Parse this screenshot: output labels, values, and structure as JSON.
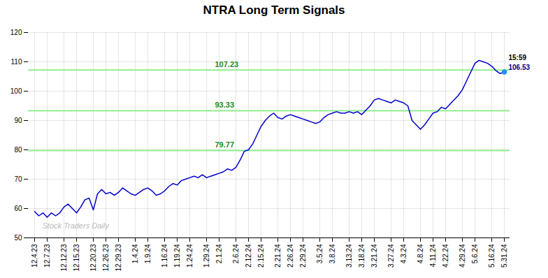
{
  "chart_data": {
    "type": "line",
    "title": "NTRA Long Term Signals",
    "categories": [
      "12.4.23",
      null,
      null,
      "12.7.23",
      null,
      null,
      null,
      "12.12.23",
      null,
      null,
      "12.15.23",
      null,
      null,
      null,
      "12.20.23",
      null,
      null,
      "12.26.23",
      null,
      null,
      "12.29.23",
      null,
      null,
      null,
      "1.4.24",
      null,
      null,
      "1.9.24",
      null,
      null,
      null,
      "1.16.24",
      null,
      null,
      "1.19.24",
      null,
      null,
      "1.24.24",
      null,
      null,
      null,
      "1.29.24",
      null,
      null,
      "2.1.24",
      null,
      null,
      null,
      "2.6.24",
      null,
      null,
      "2.12.24",
      null,
      null,
      "2.15.24",
      null,
      null,
      null,
      "2.21.24",
      null,
      null,
      "2.26.24",
      null,
      null,
      "2.29.24",
      null,
      null,
      null,
      "3.5.24",
      null,
      null,
      "3.8.24",
      null,
      null,
      null,
      "3.13.24",
      null,
      null,
      "3.18.24",
      null,
      null,
      "3.21.24",
      null,
      null,
      null,
      "3.27.24",
      null,
      null,
      "4.3.24",
      null,
      null,
      null,
      "4.8.24",
      null,
      null,
      "4.11.24",
      null,
      null,
      "4.22.24",
      null,
      null,
      null,
      "4.29.24",
      null,
      null,
      "5.6.24",
      null,
      null,
      null,
      "5.16.24",
      null,
      null,
      "5.31.24"
    ],
    "values": [
      59.0,
      57.5,
      58.5,
      57.0,
      58.5,
      57.5,
      58.5,
      60.5,
      61.5,
      60.0,
      58.5,
      60.5,
      63.0,
      63.5,
      59.5,
      65.0,
      66.5,
      65.0,
      65.5,
      64.5,
      65.5,
      67.0,
      66.0,
      65.0,
      64.5,
      65.5,
      66.5,
      67.0,
      66.0,
      64.5,
      65.0,
      66.0,
      67.5,
      68.5,
      68.0,
      69.5,
      70.0,
      70.5,
      71.0,
      70.5,
      71.5,
      70.5,
      71.0,
      71.5,
      72.0,
      72.5,
      73.5,
      73.0,
      74.0,
      76.5,
      79.5,
      80.0,
      82.0,
      85.0,
      88.0,
      90.0,
      91.5,
      92.5,
      91.0,
      90.5,
      91.5,
      92.0,
      91.5,
      91.0,
      90.5,
      90.0,
      89.5,
      89.0,
      89.5,
      91.0,
      92.0,
      92.5,
      93.0,
      92.5,
      92.5,
      93.0,
      92.5,
      93.0,
      92.0,
      93.5,
      95.0,
      97.0,
      97.5,
      97.0,
      96.5,
      96.0,
      97.0,
      96.5,
      96.0,
      95.0,
      90.0,
      88.5,
      87.0,
      88.5,
      90.5,
      92.5,
      93.0,
      94.5,
      94.0,
      95.5,
      97.0,
      98.5,
      100.5,
      103.5,
      106.5,
      109.5,
      110.5,
      110.0,
      109.5,
      108.5,
      107.0,
      106.0,
      106.53
    ],
    "color": "#0000CD",
    "ylim": [
      50,
      120
    ],
    "yticks": [
      50,
      60,
      70,
      80,
      90,
      100,
      110,
      120
    ],
    "grid": true,
    "hlines": {
      "values": [
        79.77,
        93.33,
        107.23
      ],
      "labels": [
        "79.77",
        "93.33",
        "107.23"
      ],
      "color": "#90EE90",
      "label_color": "#228B22"
    },
    "annotations": [
      {
        "text": "15:59",
        "color": "#000000"
      },
      {
        "text": "106.53",
        "color": "#00008B"
      }
    ],
    "end_marker_color": "#1E90FF",
    "watermark": "Stock Traders Daily"
  }
}
